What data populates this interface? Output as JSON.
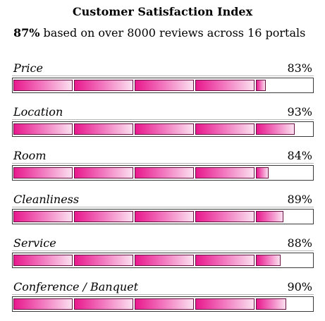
{
  "header": {
    "title": "Customer Satisfaction Index",
    "overall": "87%",
    "summary": " based on over 8000 reviews across 16 portals"
  },
  "colors": {
    "bar_start": "#e8198d",
    "bar_end": "#fbe0ef",
    "bar_border": "#6a0f46"
  },
  "categories": [
    {
      "label": "Price",
      "percent_text": "83%",
      "value": 83
    },
    {
      "label": "Location",
      "percent_text": "93%",
      "value": 93
    },
    {
      "label": "Room",
      "percent_text": "84%",
      "value": 84
    },
    {
      "label": "Cleanliness",
      "percent_text": "89%",
      "value": 89
    },
    {
      "label": "Service",
      "percent_text": "88%",
      "value": 88
    },
    {
      "label": "Conference / Banquet",
      "percent_text": "90%",
      "value": 90
    }
  ]
}
